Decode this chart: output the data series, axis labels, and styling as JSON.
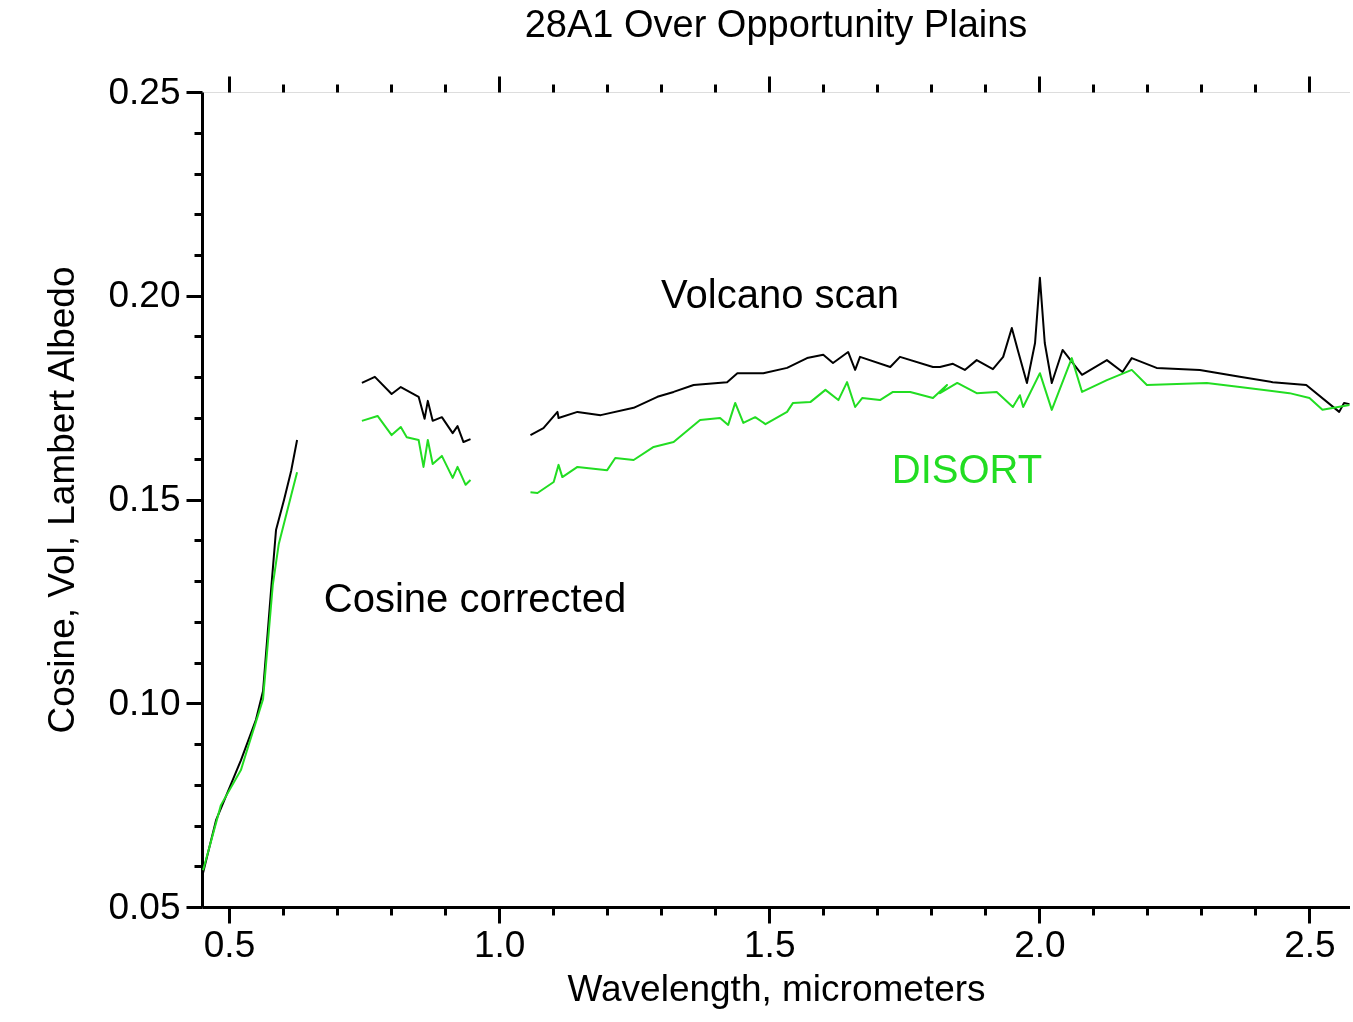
{
  "chart_data": {
    "type": "line",
    "title": "28A1 Over Opportunity Plains",
    "xlabel": "Wavelength, micrometers",
    "ylabel": "Cosine, Vol, Lambert Albedo",
    "xlim": [
      0.45,
      2.575
    ],
    "ylim": [
      0.05,
      0.25
    ],
    "xticks": [
      0.5,
      {
        "value": 0.6,
        "label": null
      },
      {
        "value": 0.7,
        "label": null
      },
      {
        "value": 0.8,
        "label": null
      },
      {
        "value": 0.9,
        "label": null
      },
      {
        "value": 1.0,
        "label": "1.0"
      },
      {
        "value": 1.1,
        "label": null
      },
      {
        "value": 1.2,
        "label": null
      },
      {
        "value": 1.3,
        "label": null
      },
      {
        "value": 1.4,
        "label": null
      },
      1.5,
      {
        "value": 1.6,
        "label": null
      },
      {
        "value": 1.7,
        "label": null
      },
      {
        "value": 1.8,
        "label": null
      },
      {
        "value": 1.9,
        "label": null
      },
      {
        "value": 2.0,
        "label": "2.0"
      },
      {
        "value": 2.1,
        "label": null
      },
      {
        "value": 2.2,
        "label": null
      },
      {
        "value": 2.3,
        "label": null
      },
      {
        "value": 2.4,
        "label": null
      },
      2.5
    ],
    "yticks": [
      0.05,
      {
        "value": 0.06,
        "label": null
      },
      {
        "value": 0.07,
        "label": null
      },
      {
        "value": 0.08,
        "label": null
      },
      {
        "value": 0.09,
        "label": null
      },
      {
        "value": 0.1,
        "label": "0.10"
      },
      {
        "value": 0.11,
        "label": null
      },
      {
        "value": 0.12,
        "label": null
      },
      {
        "value": 0.13,
        "label": null
      },
      {
        "value": 0.14,
        "label": null
      },
      0.15,
      {
        "value": 0.16,
        "label": null
      },
      {
        "value": 0.17,
        "label": null
      },
      {
        "value": 0.18,
        "label": null
      },
      {
        "value": 0.19,
        "label": null
      },
      {
        "value": 0.2,
        "label": "0.20"
      },
      {
        "value": 0.21,
        "label": null
      },
      {
        "value": 0.22,
        "label": null
      },
      {
        "value": 0.23,
        "label": null
      },
      {
        "value": 0.24,
        "label": null
      },
      0.25
    ],
    "grid": false,
    "legend": false,
    "marker": "none",
    "line_style": "solid",
    "annotations": [
      "Cosine corrected"
    ],
    "series": [
      {
        "name": "Volcano scan",
        "color": "#000000",
        "x": [
          0.452,
          0.476,
          0.522,
          0.55,
          0.563,
          0.578,
          0.587,
          0.602,
          0.615,
          0.626,
          0.69,
          0.746,
          0.77,
          0.801,
          0.818,
          0.851,
          0.862,
          0.868,
          0.877,
          0.894,
          0.914,
          0.923,
          0.934,
          0.947,
          1.0,
          1.058,
          1.082,
          1.108,
          1.11,
          1.145,
          1.188,
          1.249,
          1.293,
          1.323,
          1.36,
          1.422,
          1.441,
          1.489,
          1.533,
          1.57,
          1.6,
          1.618,
          1.646,
          1.659,
          1.668,
          1.724,
          1.742,
          1.803,
          1.816,
          1.84,
          1.862,
          1.884,
          1.914,
          1.933,
          1.949,
          1.96,
          1.977,
          1.992,
          2.001,
          2.01,
          2.023,
          2.043,
          2.079,
          2.125,
          2.154,
          2.171,
          2.217,
          2.297,
          2.371,
          2.432,
          2.494,
          2.555,
          2.564,
          2.574
        ],
        "values": [
          0.0584,
          0.0713,
          0.086,
          0.096,
          0.103,
          0.128,
          0.1425,
          0.15,
          0.157,
          0.1646,
          null,
          0.1786,
          0.1801,
          0.1759,
          0.1776,
          0.1752,
          0.1698,
          0.1742,
          0.1693,
          0.1702,
          0.1663,
          0.168,
          0.1641,
          0.1648,
          null,
          0.1658,
          0.1675,
          0.1715,
          0.17,
          0.1715,
          0.1707,
          0.1725,
          0.1752,
          0.1764,
          0.1781,
          0.1788,
          0.181,
          0.181,
          0.1823,
          0.1847,
          0.1855,
          0.1835,
          0.1862,
          0.1818,
          0.185,
          0.1825,
          0.185,
          0.1825,
          0.1825,
          0.1833,
          0.1818,
          0.1842,
          0.182,
          0.185,
          0.1921,
          0.1867,
          0.1786,
          0.1884,
          0.2044,
          0.1884,
          0.1786,
          0.1867,
          0.1806,
          0.1842,
          0.1813,
          0.1847,
          0.1823,
          0.1818,
          0.1801,
          0.1788,
          0.1781,
          0.1715,
          0.1737,
          0.1734
        ]
      },
      {
        "name": "DISORT",
        "color": "#22dd22",
        "x": [
          0.452,
          0.485,
          0.522,
          0.537,
          0.563,
          0.581,
          0.592,
          0.615,
          0.626,
          0.69,
          0.746,
          0.775,
          0.801,
          0.818,
          0.829,
          0.851,
          0.86,
          0.868,
          0.877,
          0.894,
          0.914,
          0.923,
          0.938,
          0.947,
          1.0,
          1.058,
          1.071,
          1.101,
          1.11,
          1.117,
          1.145,
          1.2,
          1.215,
          1.249,
          1.286,
          1.323,
          1.372,
          1.409,
          1.424,
          1.437,
          1.452,
          1.474,
          1.493,
          1.533,
          1.544,
          1.576,
          1.604,
          1.628,
          1.644,
          1.659,
          1.672,
          1.705,
          1.729,
          1.761,
          1.803,
          1.829,
          1.816,
          1.848,
          1.884,
          1.921,
          1.951,
          1.964,
          1.97,
          2.001,
          2.023,
          2.06,
          2.079,
          2.125,
          2.171,
          2.199,
          2.31,
          2.371,
          2.463,
          2.5,
          2.524,
          2.574
        ],
        "values": [
          0.059,
          0.075,
          0.0836,
          0.09,
          0.101,
          0.129,
          0.139,
          0.151,
          0.1567,
          null,
          0.1693,
          0.1705,
          0.1658,
          0.1678,
          0.1653,
          0.1646,
          0.158,
          0.1646,
          0.1587,
          0.1607,
          0.1553,
          0.158,
          0.1536,
          0.1548,
          null,
          0.1518,
          0.1516,
          0.1543,
          0.1585,
          0.1555,
          0.158,
          0.1572,
          0.1602,
          0.1597,
          0.1629,
          0.1641,
          0.1695,
          0.17,
          0.1683,
          0.1737,
          0.1688,
          0.1702,
          0.1685,
          0.1715,
          0.1737,
          0.1739,
          0.1769,
          0.1744,
          0.1788,
          0.1727,
          0.1749,
          0.1744,
          0.1764,
          0.1764,
          0.1749,
          0.1781,
          0.1761,
          0.1786,
          0.1761,
          0.1764,
          0.1727,
          0.1756,
          0.1727,
          0.181,
          0.172,
          0.1847,
          0.1764,
          0.1793,
          0.1818,
          0.1781,
          0.1786,
          0.1776,
          0.1761,
          0.1749,
          0.172,
          0.1732
        ]
      }
    ]
  }
}
